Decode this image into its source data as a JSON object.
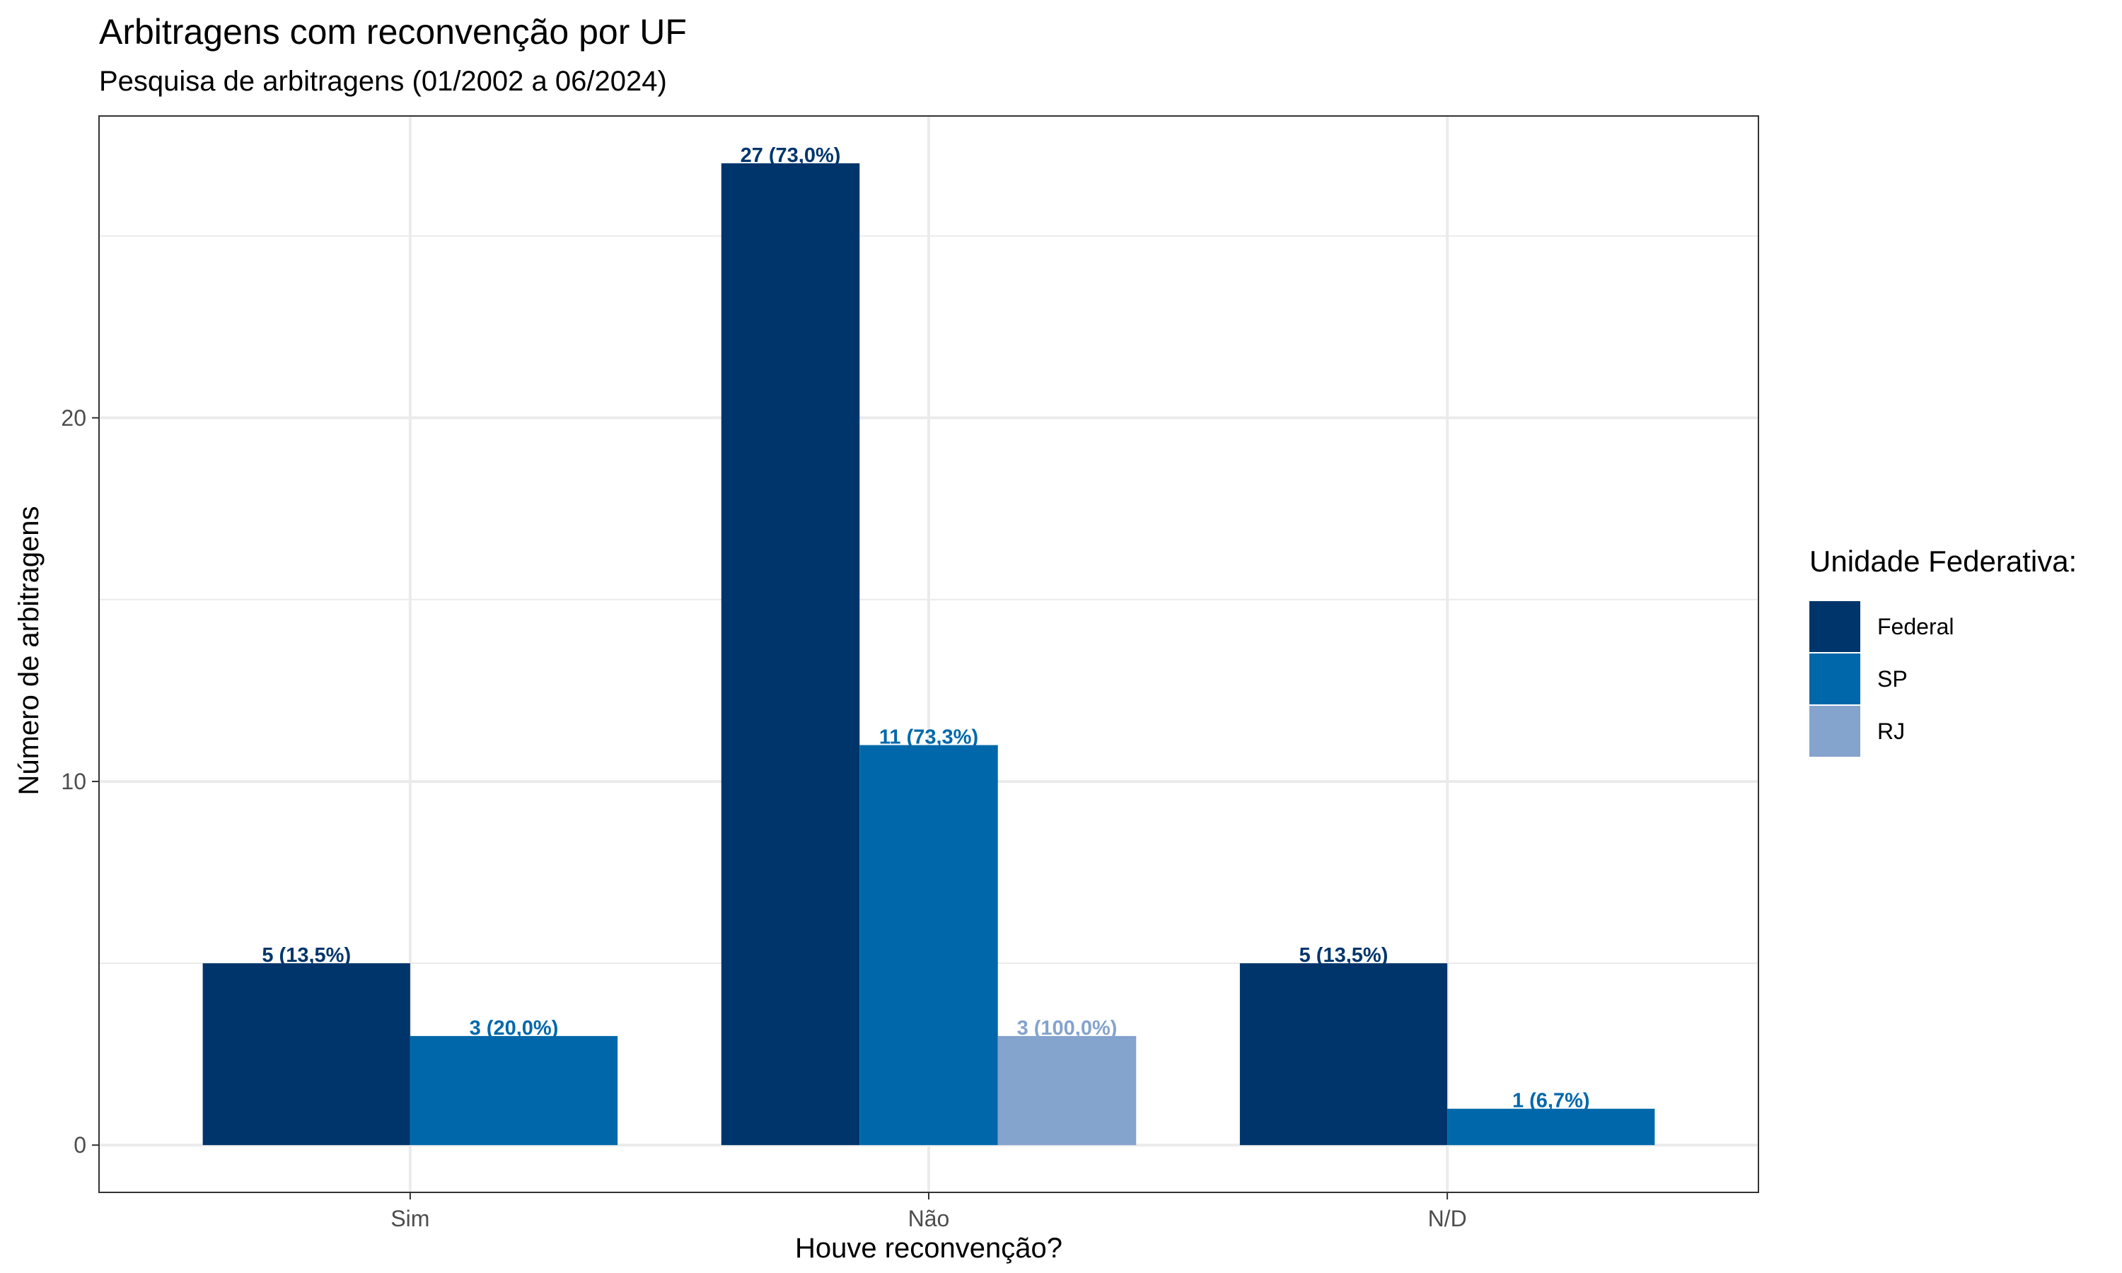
{
  "chart_data": {
    "type": "bar",
    "title": "Arbitragens com reconvenção por UF",
    "subtitle": "Pesquisa de arbitragens (01/2002 a 06/2024)",
    "xlabel": "Houve reconvenção?",
    "ylabel": "Número de arbitragens",
    "categories": [
      "Sim",
      "Não",
      "N/D"
    ],
    "ylim": [
      -1.3,
      28.3
    ],
    "yticks": [
      0,
      10,
      20
    ],
    "grid": true,
    "legend": {
      "title": "Unidade Federativa:",
      "position": "right"
    },
    "series": [
      {
        "name": "Federal",
        "color": "#00356B",
        "values": [
          5,
          27,
          5
        ],
        "labels": [
          "5 (13,5%)",
          "27 (73,0%)",
          "5 (13,5%)"
        ]
      },
      {
        "name": "SP",
        "color": "#0068AA",
        "values": [
          3,
          11,
          1
        ],
        "labels": [
          "3 (20,0%)",
          "11 (73,3%)",
          "1 (6,7%)"
        ]
      },
      {
        "name": "RJ",
        "color": "#84A3CD",
        "values": [
          null,
          3,
          null
        ],
        "labels": [
          null,
          "3 (100,0%)",
          null
        ]
      }
    ]
  }
}
